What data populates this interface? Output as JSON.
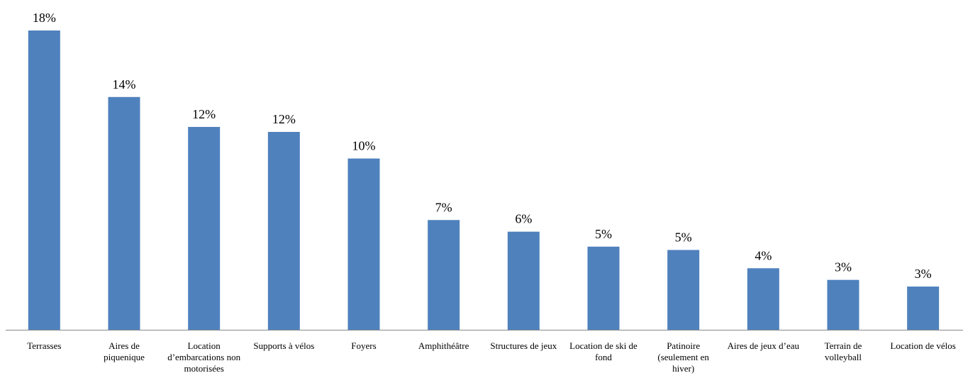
{
  "chart_data": {
    "type": "bar",
    "categories": [
      "Terrasses",
      "Aires de piquenique",
      "Location d’embarcations non motorisées",
      "Supports à vélos",
      "Foyers",
      "Amphithéâtre",
      "Structures de jeux",
      "Location de ski de fond",
      "Patinoire (seulement en hiver)",
      "Aires de jeux d’eau",
      "Terrain de volleyball",
      "Location de vélos"
    ],
    "values": [
      18.0,
      14.0,
      12.2,
      11.9,
      10.3,
      6.6,
      5.9,
      5.0,
      4.8,
      3.7,
      3.0,
      2.6
    ],
    "value_labels": [
      "18%",
      "14%",
      "12%",
      "12%",
      "10%",
      "7%",
      "6%",
      "5%",
      "5%",
      "4%",
      "3%",
      "3%"
    ],
    "color": "#4f81bd"
  }
}
